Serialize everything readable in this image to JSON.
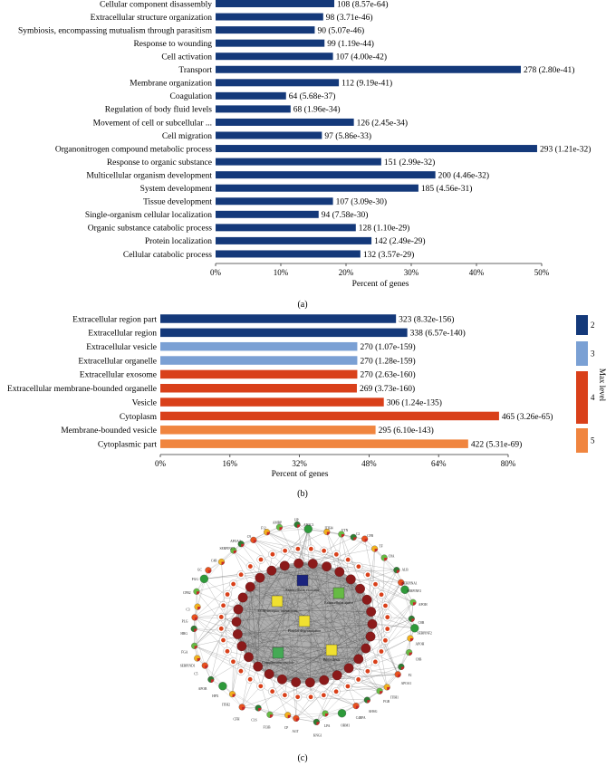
{
  "chart_data": [
    {
      "id": "a",
      "type": "bar",
      "orientation": "horizontal",
      "caption": "(a)",
      "xlabel": "Percent of genes",
      "xlim": [
        0,
        50
      ],
      "xticks": [
        "0%",
        "10%",
        "20%",
        "30%",
        "40%",
        "50%"
      ],
      "bar_color": "#14397a",
      "categories": [
        "Cellular component disassembly",
        "Extracellular structure organization",
        "Symbiosis, encompassing mutualism through parasitism",
        "Response to wounding",
        "Cell activation",
        "Transport",
        "Membrane organization",
        "Coagulation",
        "Regulation of body fluid levels",
        "Movement of cell or subcellular ...",
        "Cell migration",
        "Organonitrogen compound metabolic process",
        "Response to organic substance",
        "Multicellular organism development",
        "System development",
        "Tissue development",
        "Single-organism cellular localization",
        "Organic substance catabolic process",
        "Protein localization",
        "Cellular catabolic process"
      ],
      "values": [
        18.2,
        16.5,
        15.2,
        16.7,
        18.0,
        46.8,
        18.9,
        10.8,
        11.5,
        21.2,
        16.3,
        49.3,
        25.4,
        33.7,
        31.1,
        18.0,
        15.8,
        21.5,
        23.9,
        22.2
      ],
      "data_labels": [
        "108 (8.57e-64)",
        "98 (3.71e-46)",
        "90 (5.07e-46)",
        "99 (1.19e-44)",
        "107 (4.00e-42)",
        "278 (2.80e-41)",
        "112 (9.19e-41)",
        "64 (5.68e-37)",
        "68 (1.96e-34)",
        "126 (2.45e-34)",
        "97 (5.86e-33)",
        "293 (1.21e-32)",
        "151 (2.99e-32)",
        "200 (4.46e-32)",
        "185 (4.56e-31)",
        "107 (3.09e-30)",
        "94 (7.58e-30)",
        "128 (1.10e-29)",
        "142 (2.49e-29)",
        "132 (3.57e-29)"
      ]
    },
    {
      "id": "b",
      "type": "bar",
      "orientation": "horizontal",
      "caption": "(b)",
      "xlabel": "Percent of genes",
      "xlim": [
        0,
        80
      ],
      "xticks": [
        "0%",
        "16%",
        "32%",
        "48%",
        "64%",
        "80%"
      ],
      "categories": [
        "Extracellular region part",
        "Extracellular region",
        "Extracellular vesicle",
        "Extracellular organelle",
        "Extracellular exosome",
        "Extracellular membrane-bounded organelle",
        "Vesicle",
        "Cytoplasm",
        "Membrane-bounded vesicle",
        "Cytoplasmic part"
      ],
      "values": [
        54.2,
        56.8,
        45.3,
        45.3,
        45.3,
        45.2,
        51.4,
        77.9,
        49.5,
        70.8
      ],
      "levels": [
        2,
        2,
        3,
        3,
        4,
        4,
        4,
        4,
        5,
        5
      ],
      "data_labels": [
        "323 (8.32e-156)",
        "338 (6.57e-140)",
        "270 (1.07e-159)",
        "270 (1.28e-159)",
        "270 (2.63e-160)",
        "269 (3.73e-160)",
        "306 (1.24e-135)",
        "465 (3.26e-65)",
        "295 (6.10e-143)",
        "422 (5.31e-69)"
      ],
      "legend": {
        "title": "Max level",
        "items": [
          {
            "label": "2",
            "color": "#14397a"
          },
          {
            "label": "3",
            "color": "#7aa0d4"
          },
          {
            "label": "4",
            "color": "#d9401a"
          },
          {
            "label": "5",
            "color": "#f0853f"
          }
        ]
      }
    },
    {
      "id": "c",
      "type": "network",
      "caption": "(c)",
      "hub_labels": [
        "Extracellular exosome",
        "Extracellular space",
        "ECM-receptor interaction",
        "Platelet degranulation",
        "Complement cascade",
        "Proteolysis"
      ],
      "hub_colors": [
        "#1a237e",
        "#66bb44",
        "#f0e030",
        "#f0e030",
        "#44aa55",
        "#f0e030"
      ],
      "outer_labels": [
        "SERPINF2",
        "APOH",
        "C8B",
        "F2",
        "APOA1",
        "ITIH1",
        "FGB",
        "AHSG",
        "C4BPA",
        "ORM1",
        "LPA",
        "KNG1",
        "AGT",
        "CP",
        "F13B",
        "C1S",
        "CFH",
        "ITIH2",
        "HPX",
        "APOB",
        "C5",
        "SERPIND1",
        "FGA",
        "HRG",
        "PLG",
        "C3",
        "CPB2",
        "FGG",
        "GC",
        "C4B",
        "SERPINC1",
        "APOA2",
        "C9",
        "F12",
        "AMBP",
        "HP",
        "APOC3",
        "ITIH4",
        "VTN",
        "C2",
        "CFB",
        "TF",
        "C8A",
        "ALB",
        "SERPINA1"
      ]
    }
  ]
}
